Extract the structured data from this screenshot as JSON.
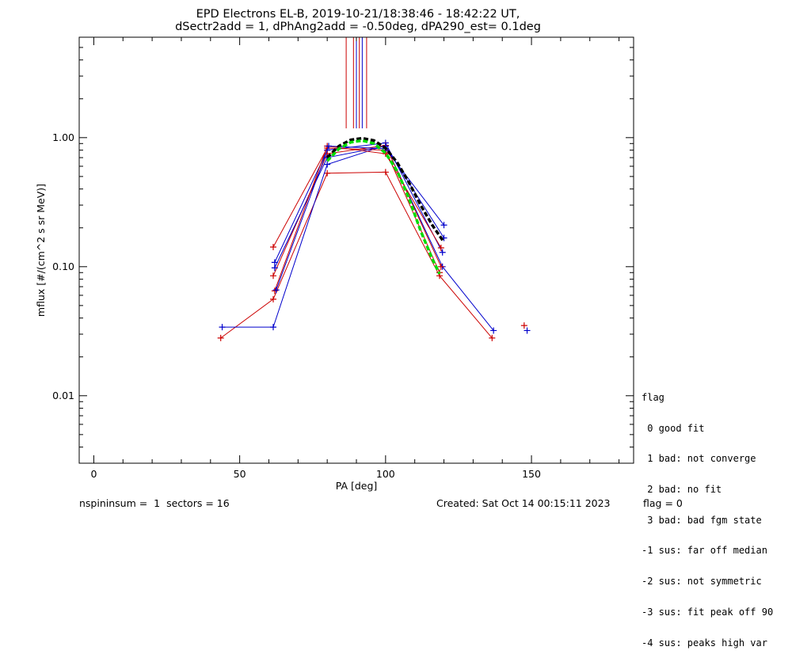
{
  "chart_data": {
    "type": "line",
    "title": "EPD Electrons EL-B, 2019-10-21/18:38:46 - 18:42:22 UT,",
    "subtitle": "dSectr2add = 1, dPhAng2add = -0.50deg, dPA290_est=   0.1deg",
    "xlabel": "PA [deg]",
    "ylabel": "mflux [#/(cm^2 s sr MeV)]",
    "xlim": [
      -5,
      185
    ],
    "ylim": [
      0.003,
      6.0
    ],
    "yscale": "log",
    "x_ticks": [
      "0",
      "50",
      "100",
      "150"
    ],
    "x_tick_values": [
      0,
      50,
      100,
      150
    ],
    "y_ticks": [
      "0.01",
      "0.10",
      "1.00"
    ],
    "y_tick_values": [
      0.01,
      0.1,
      1.0
    ],
    "colors": {
      "red": "#cc0000",
      "blue": "#0000cc",
      "green": "#00dd00",
      "black": "#000000"
    },
    "series": [
      {
        "color": "red",
        "x": [
          43.5,
          61.5,
          80,
          100,
          118.5,
          136.5
        ],
        "y": [
          0.028,
          0.056,
          0.53,
          0.54,
          0.085,
          0.028
        ]
      },
      {
        "color": "blue",
        "x": [
          44,
          61.5,
          80,
          100,
          119.5,
          137
        ],
        "y": [
          0.034,
          0.034,
          0.62,
          0.87,
          0.1,
          0.032
        ]
      },
      {
        "color": "red",
        "x": [
          61.5,
          80,
          100,
          118.5
        ],
        "y": [
          0.142,
          0.83,
          0.8,
          0.09
        ]
      },
      {
        "color": "blue",
        "x": [
          62,
          80,
          100,
          119.5
        ],
        "y": [
          0.108,
          0.8,
          0.91,
          0.129
        ]
      },
      {
        "color": "red",
        "x": [
          61.5,
          80,
          100,
          119
        ],
        "y": [
          0.085,
          0.75,
          0.87,
          0.1
        ]
      },
      {
        "color": "blue",
        "x": [
          62,
          80,
          100,
          120
        ],
        "y": [
          0.098,
          0.7,
          0.86,
          0.167
        ]
      },
      {
        "color": "red",
        "x": [
          62,
          80,
          100,
          119
        ],
        "y": [
          0.065,
          0.86,
          0.75,
          0.14
        ]
      },
      {
        "color": "blue",
        "x": [
          62.5,
          80.5,
          100,
          120
        ],
        "y": [
          0.066,
          0.86,
          0.82,
          0.21
        ]
      }
    ],
    "stray_points": [
      {
        "color": "red",
        "x": 147.5,
        "y": 0.035
      },
      {
        "color": "blue",
        "x": 148.5,
        "y": 0.032
      }
    ],
    "vertical_lines": [
      {
        "color": "red",
        "x": 86.5
      },
      {
        "color": "red",
        "x": 89
      },
      {
        "color": "blue",
        "x": 90
      },
      {
        "color": "red",
        "x": 91
      },
      {
        "color": "blue",
        "x": 92
      },
      {
        "color": "red",
        "x": 93.5
      }
    ],
    "vertical_line_ylim": [
      1.18,
      6.0
    ],
    "fit_curves": [
      {
        "color": "black",
        "x": [
          80,
          84,
          88,
          92,
          96,
          100,
          104,
          108,
          112,
          116,
          120
        ],
        "y": [
          0.7,
          0.86,
          0.96,
          0.99,
          0.95,
          0.83,
          0.64,
          0.45,
          0.3,
          0.21,
          0.155
        ]
      },
      {
        "color": "green",
        "x": [
          80,
          84,
          88,
          92,
          96,
          100,
          104,
          108,
          112,
          116,
          118.5
        ],
        "y": [
          0.66,
          0.82,
          0.92,
          0.95,
          0.9,
          0.76,
          0.55,
          0.34,
          0.19,
          0.115,
          0.088
        ]
      }
    ]
  },
  "legend": {
    "title": "flag",
    "items": [
      " 0 good fit",
      " 1 bad: not converge",
      " 2 bad: no fit",
      " 3 bad: bad fgm state",
      "-1 sus: far off median",
      "-2 sus: not symmetric",
      "-3 sus: fit peak off 90",
      "-4 sus: peaks high var"
    ]
  },
  "footer": {
    "left": "nspininsum =  1  sectors = 16",
    "created": "Created: Sat Oct 14 00:15:11 2023",
    "flag": "flag = 0"
  }
}
